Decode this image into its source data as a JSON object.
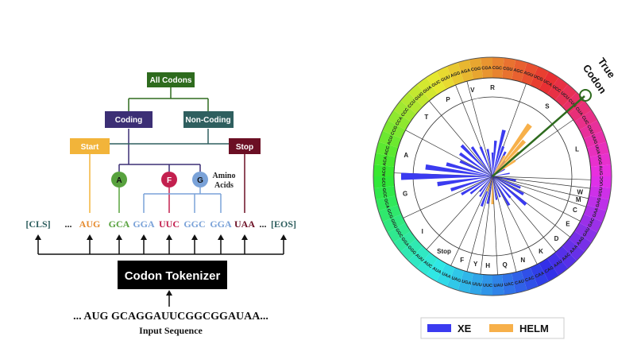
{
  "tree": {
    "root": "All Codons",
    "coding": "Coding",
    "noncoding": "Non-Coding",
    "start": "Start",
    "stop": "Stop",
    "amino": [
      "A",
      "F",
      "G"
    ],
    "amino_label_1": "Amino",
    "amino_label_2": "Acids",
    "tokens": [
      "[CLS]",
      "...",
      "AUG",
      "GCA",
      "GGA",
      "UUC",
      "GGC",
      "GGA",
      "UAA",
      "...",
      "[EOS]"
    ],
    "tokenizer": "Codon Tokenizer",
    "input_seq": "... AUG GCAGGAUUCGGCGGAUAA...",
    "input_label": "Input Sequence",
    "colors": {
      "root": "#2e6b1e",
      "coding": "#3c2f75",
      "noncoding": "#2f5f5f",
      "start": "#f2b43a",
      "stop": "#6b0f24",
      "A": "#58a23e",
      "F": "#c3204f",
      "G": "#7aa2d8"
    }
  },
  "wheel": {
    "true_label_1": "True",
    "true_label_2": "Codon",
    "amino_letters": [
      {
        "label": "R",
        "angle": 0
      },
      {
        "label": "S",
        "angle": 38
      },
      {
        "label": "L",
        "angle": 72
      },
      {
        "label": "W",
        "angle": 100
      },
      {
        "label": "M",
        "angle": 105
      },
      {
        "label": "C",
        "angle": 112
      },
      {
        "label": "E",
        "angle": 122
      },
      {
        "label": "D",
        "angle": 134
      },
      {
        "label": "K",
        "angle": 147
      },
      {
        "label": "N",
        "angle": 160
      },
      {
        "label": "Q",
        "angle": 172
      },
      {
        "label": "H",
        "angle": 183
      },
      {
        "label": "Y",
        "angle": 191
      },
      {
        "label": "F",
        "angle": 200
      },
      {
        "label": "Stop",
        "angle": 213
      },
      {
        "label": "I",
        "angle": 232
      },
      {
        "label": "G",
        "angle": 259
      },
      {
        "label": "A",
        "angle": 284
      },
      {
        "label": "T",
        "angle": 312
      },
      {
        "label": "P",
        "angle": 330
      },
      {
        "label": "V",
        "angle": 347
      }
    ],
    "codons_top": [
      "AGG",
      "AGA",
      "CGG",
      "CGA",
      "CGC",
      "CGU",
      "AGC",
      "AGU",
      "UCG",
      "UCA",
      "UCC",
      "UCU"
    ],
    "codons_right": [
      "CUG",
      "CUA",
      "CUC",
      "CUU",
      "UUG",
      "UUA",
      "UGG",
      "AUG",
      "UGC",
      "UGU",
      "GAG",
      "GAA",
      "GAC",
      "GAU"
    ],
    "codons_bottom": [
      "AAG",
      "AAA",
      "AAC",
      "AAU",
      "CAG",
      "CAA",
      "CAC",
      "CAU",
      "UAC",
      "UAU",
      "UUC",
      "UUU",
      "UGA",
      "UAG",
      "UAA"
    ],
    "codons_left": [
      "AUA",
      "AUC",
      "AUU",
      "GGG",
      "GGA",
      "GGC",
      "GGU",
      "GCG",
      "GCA",
      "GCC",
      "GCU",
      "ACG",
      "ACA",
      "ACC",
      "ACU"
    ],
    "codons_topleft": [
      "CCG",
      "CCA",
      "CCC",
      "CCU",
      "GUG",
      "GUA",
      "GUC",
      "GUU"
    ],
    "true_codon": "UCC",
    "legend": {
      "xe": "XE",
      "helm": "HELM"
    },
    "colors": {
      "xe": "#3b3bf0",
      "helm": "#f7b04a"
    }
  }
}
